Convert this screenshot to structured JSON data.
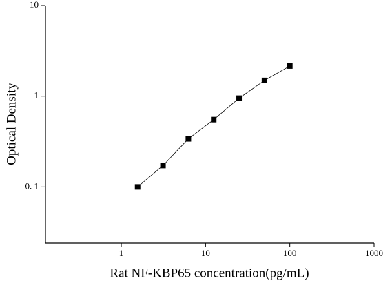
{
  "chart_data": {
    "type": "scatter",
    "x_label": "Rat NF-KBP65 concentration(pg/mL)",
    "y_label": "Optical Density",
    "series": [
      {
        "x": [
          1.5625,
          3.125,
          6.25,
          12.5,
          25,
          50,
          100
        ],
        "values": [
          0.1,
          0.172,
          0.339,
          0.552,
          0.95,
          1.49,
          2.15
        ],
        "color": "#000000"
      }
    ],
    "line": true,
    "xscale": "log",
    "yscale": "log",
    "xlim": [
      0.126,
      1000
    ],
    "ylim": [
      0.024,
      10
    ],
    "xticks": [
      1,
      10,
      100,
      1000
    ],
    "yticks": [
      {
        "value": 0.1,
        "label": "0. 1"
      },
      1,
      10
    ]
  }
}
